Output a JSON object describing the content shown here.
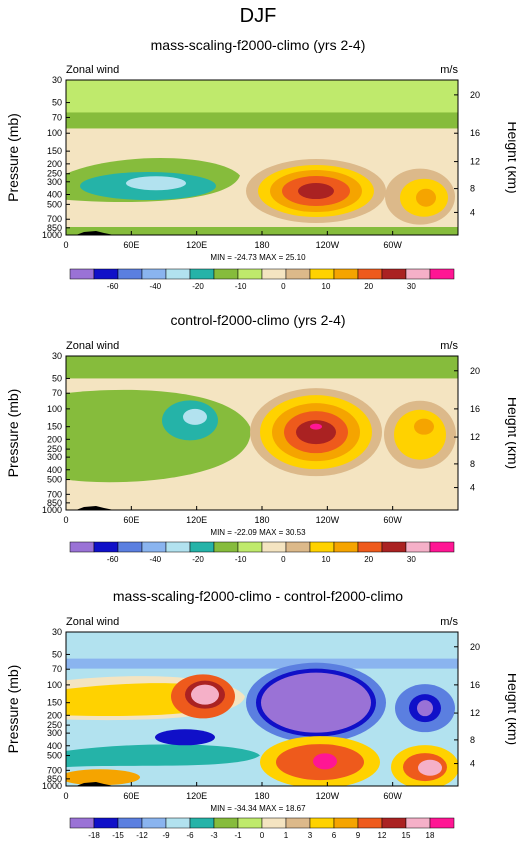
{
  "figure": {
    "title": "DJF"
  },
  "palettes": {
    "wind": [
      "#9a72d6",
      "#1010c8",
      "#5b7fe0",
      "#8ab4ef",
      "#b2e2ef",
      "#25b3a8",
      "#86bc3c",
      "#bfea6c",
      "#f4e4c1",
      "#dcb98a",
      "#ffd200",
      "#f5a400",
      "#ee5a1c",
      "#aa2222",
      "#f5b0c8",
      "#ff1694"
    ],
    "diff": [
      "#9a72d6",
      "#1010c8",
      "#5b7fe0",
      "#8ab4ef",
      "#b2e2ef",
      "#25b3a8",
      "#86bc3c",
      "#bfea6c",
      "#f4e4c1",
      "#dcb98a",
      "#ffd200",
      "#f5a400",
      "#ee5a1c",
      "#aa2222",
      "#f5b0c8",
      "#ff1694"
    ]
  },
  "chart_data": [
    {
      "type": "heatmap",
      "title": "mass-scaling-f2000-climo (yrs 2-4)",
      "left_string": "Zonal wind",
      "right_string": "m/s",
      "xlabel": "",
      "ylabel": "Pressure (mb)",
      "ylabel_right": "Height (km)",
      "x_ticks": [
        "0",
        "60E",
        "120E",
        "180",
        "120W",
        "60W"
      ],
      "y_ticks": [
        "30",
        "50",
        "70",
        "100",
        "150",
        "200",
        "250",
        "300",
        "400",
        "500",
        "700",
        "850",
        "1000"
      ],
      "y_ticks_right": [
        "20",
        "16",
        "12",
        "8",
        "4"
      ],
      "stats": "MIN = -24.73   MAX = 25.10",
      "colorbar_labels": [
        "-60",
        "-40",
        "-20",
        "-10",
        "0",
        "10",
        "20",
        "30"
      ],
      "palette": "wind",
      "min": -24.73,
      "max": 25.1
    },
    {
      "type": "heatmap",
      "title": "control-f2000-climo (yrs 2-4)",
      "left_string": "Zonal wind",
      "right_string": "m/s",
      "xlabel": "",
      "ylabel": "Pressure (mb)",
      "ylabel_right": "Height (km)",
      "x_ticks": [
        "0",
        "60E",
        "120E",
        "180",
        "120W",
        "60W"
      ],
      "y_ticks": [
        "30",
        "50",
        "70",
        "100",
        "150",
        "200",
        "250",
        "300",
        "400",
        "500",
        "700",
        "850",
        "1000"
      ],
      "y_ticks_right": [
        "20",
        "16",
        "12",
        "8",
        "4"
      ],
      "stats": "MIN = -22.09   MAX = 30.53",
      "colorbar_labels": [
        "-60",
        "-40",
        "-20",
        "-10",
        "0",
        "10",
        "20",
        "30"
      ],
      "palette": "wind",
      "min": -22.09,
      "max": 30.53
    },
    {
      "type": "heatmap",
      "title": "mass-scaling-f2000-climo - control-f2000-climo",
      "left_string": "Zonal wind",
      "right_string": "m/s",
      "xlabel": "",
      "ylabel": "Pressure (mb)",
      "ylabel_right": "Height (km)",
      "x_ticks": [
        "0",
        "60E",
        "120E",
        "180",
        "120W",
        "60W"
      ],
      "y_ticks": [
        "30",
        "50",
        "70",
        "100",
        "150",
        "200",
        "250",
        "300",
        "400",
        "500",
        "700",
        "850",
        "1000"
      ],
      "y_ticks_right": [
        "20",
        "16",
        "12",
        "8",
        "4"
      ],
      "stats": "MIN = -34.34   MAX = 18.67",
      "colorbar_labels": [
        "-18",
        "-15",
        "-12",
        "-9",
        "-6",
        "-3",
        "-1",
        "0",
        "1",
        "3",
        "6",
        "9",
        "12",
        "15",
        "18"
      ],
      "palette": "diff",
      "min": -34.34,
      "max": 18.67
    }
  ]
}
